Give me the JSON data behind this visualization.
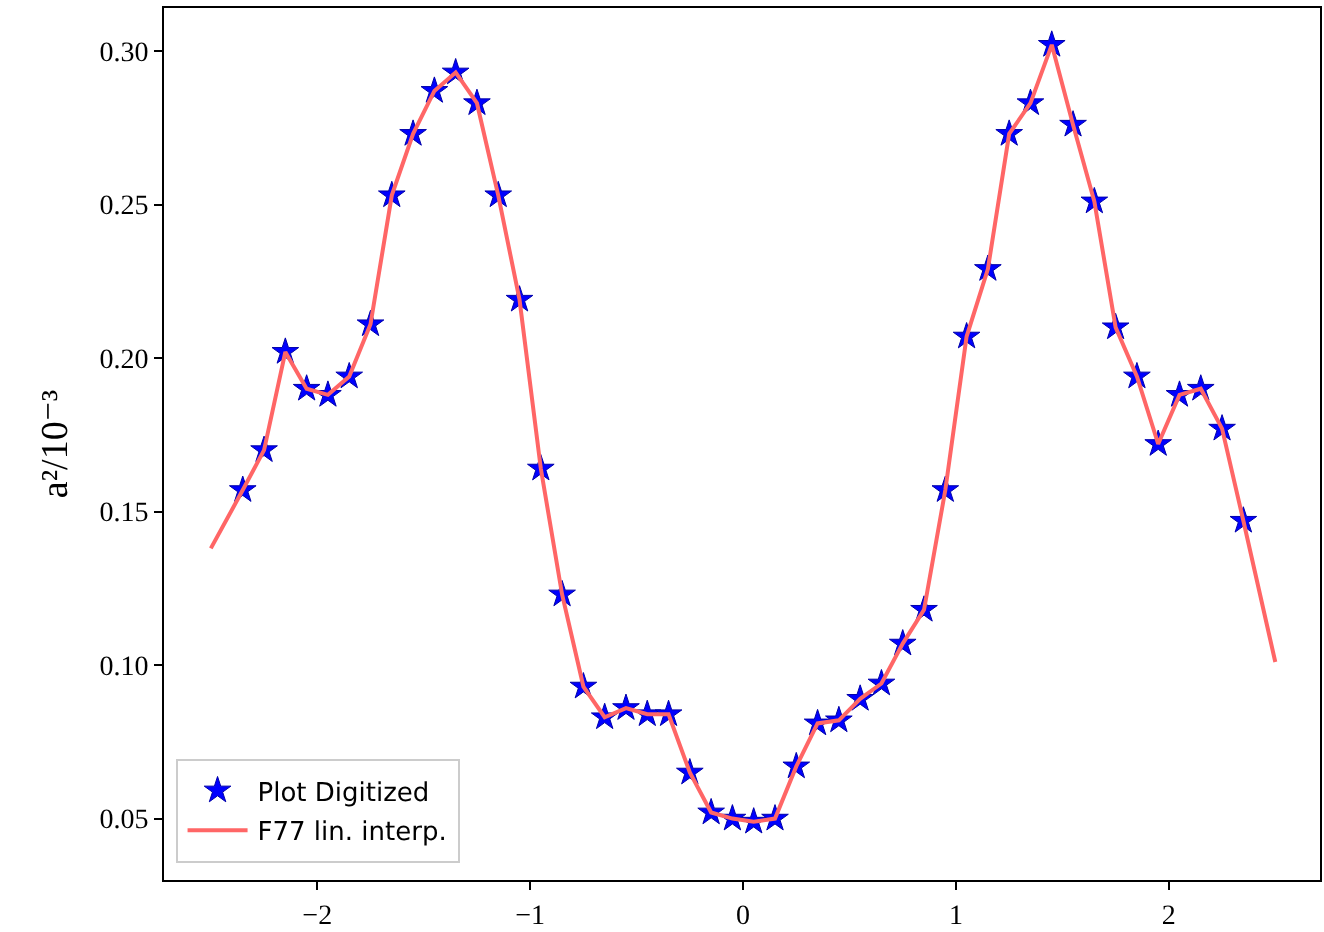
{
  "chart_data": {
    "type": "line",
    "ylabel": "a²/10⁻³",
    "xlim": [
      -2.72,
      2.71
    ],
    "ylim": [
      0.03,
      0.314
    ],
    "xticks": [
      {
        "value": -2,
        "label": "−2"
      },
      {
        "value": -1,
        "label": "−1"
      },
      0,
      1,
      2
    ],
    "yticks": [
      {
        "value": 0.05,
        "label": "0.05"
      },
      {
        "value": 0.1,
        "label": "0.10"
      },
      {
        "value": 0.15,
        "label": "0.15"
      },
      {
        "value": 0.2,
        "label": "0.20"
      },
      {
        "value": 0.25,
        "label": "0.25"
      },
      {
        "value": 0.3,
        "label": "0.30"
      }
    ],
    "grid": false,
    "legend": "bottom left",
    "series": [
      {
        "name": "Plot Digitized",
        "type": "scatter",
        "marker": "star",
        "color": "#0000ff",
        "x": [
          -2.35,
          -2.25,
          -2.15,
          -2.05,
          -1.95,
          -1.85,
          -1.75,
          -1.65,
          -1.55,
          -1.45,
          -1.35,
          -1.25,
          -1.15,
          -1.05,
          -0.95,
          -0.85,
          -0.75,
          -0.65,
          -0.55,
          -0.45,
          -0.35,
          -0.25,
          -0.15,
          -0.05,
          0.05,
          0.15,
          0.25,
          0.35,
          0.45,
          0.55,
          0.65,
          0.75,
          0.85,
          0.95,
          1.05,
          1.15,
          1.25,
          1.35,
          1.45,
          1.55,
          1.65,
          1.75,
          1.85,
          1.95,
          2.05,
          2.15,
          2.25,
          2.35
        ],
        "values": [
          0.157,
          0.17,
          0.202,
          0.19,
          0.188,
          0.194,
          0.211,
          0.253,
          0.273,
          0.287,
          0.293,
          0.283,
          0.253,
          0.219,
          0.164,
          0.123,
          0.093,
          0.083,
          0.086,
          0.084,
          0.084,
          0.065,
          0.052,
          0.05,
          0.049,
          0.05,
          0.067,
          0.081,
          0.082,
          0.089,
          0.094,
          0.107,
          0.118,
          0.157,
          0.207,
          0.229,
          0.273,
          0.283,
          0.302,
          0.276,
          0.251,
          0.21,
          0.194,
          0.172,
          0.188,
          0.19,
          0.177,
          0.147
        ]
      },
      {
        "name": "F77 lin. interp.",
        "marker": "none",
        "line_style": "solid",
        "color": "#ff6666",
        "x": [
          -2.5,
          -2.35,
          -2.25,
          -2.15,
          -2.05,
          -1.95,
          -1.85,
          -1.75,
          -1.65,
          -1.55,
          -1.45,
          -1.35,
          -1.25,
          -1.15,
          -1.05,
          -0.95,
          -0.85,
          -0.75,
          -0.65,
          -0.55,
          -0.45,
          -0.35,
          -0.25,
          -0.15,
          -0.05,
          0.05,
          0.15,
          0.25,
          0.35,
          0.45,
          0.55,
          0.65,
          0.75,
          0.85,
          0.95,
          1.05,
          1.15,
          1.25,
          1.35,
          1.45,
          1.55,
          1.65,
          1.75,
          1.85,
          1.95,
          2.05,
          2.15,
          2.25,
          2.35,
          2.5
        ],
        "values": [
          0.138,
          0.157,
          0.17,
          0.202,
          0.19,
          0.188,
          0.194,
          0.211,
          0.253,
          0.273,
          0.287,
          0.293,
          0.283,
          0.253,
          0.219,
          0.164,
          0.123,
          0.093,
          0.083,
          0.086,
          0.084,
          0.084,
          0.065,
          0.052,
          0.05,
          0.049,
          0.05,
          0.067,
          0.081,
          0.082,
          0.089,
          0.094,
          0.107,
          0.118,
          0.157,
          0.207,
          0.229,
          0.273,
          0.283,
          0.302,
          0.276,
          0.251,
          0.21,
          0.194,
          0.172,
          0.188,
          0.19,
          0.177,
          0.147,
          0.101
        ]
      }
    ]
  }
}
